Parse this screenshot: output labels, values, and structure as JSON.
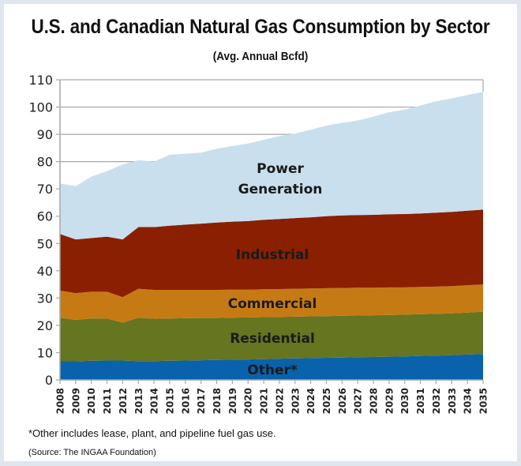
{
  "chart_data": {
    "type": "area",
    "stacked": true,
    "title": "U.S. and Canadian Natural Gas Consumption by Sector",
    "subtitle": "(Avg. Annual Bcfd)",
    "xlabel": "",
    "ylabel": "",
    "ylim": [
      0,
      110
    ],
    "yticks": [
      0,
      10,
      20,
      30,
      40,
      50,
      60,
      70,
      80,
      90,
      100,
      110
    ],
    "grid": true,
    "legend": "inline-labels",
    "x": [
      "2008",
      "2009",
      "2010",
      "2011",
      "2012",
      "2013",
      "2014",
      "2015",
      "2016",
      "2017",
      "2018",
      "2019",
      "2020",
      "2021",
      "2022",
      "2023",
      "2024",
      "2025",
      "2026",
      "2027",
      "2028",
      "2029",
      "2030",
      "2031",
      "2032",
      "2033",
      "2034",
      "2035"
    ],
    "series": [
      {
        "name": "Other*",
        "color": "#0a62ad",
        "values": [
          6.8,
          6.8,
          7.0,
          7.1,
          7.1,
          6.9,
          6.9,
          7.0,
          7.1,
          7.2,
          7.3,
          7.4,
          7.5,
          7.6,
          7.8,
          7.9,
          8.0,
          8.1,
          8.2,
          8.3,
          8.4,
          8.5,
          8.6,
          8.8,
          8.9,
          9.1,
          9.3,
          9.5
        ]
      },
      {
        "name": "Residential",
        "color": "#657520",
        "values": [
          16.0,
          15.2,
          15.5,
          15.4,
          13.9,
          15.9,
          15.5,
          15.5,
          15.5,
          15.5,
          15.4,
          15.4,
          15.4,
          15.4,
          15.3,
          15.3,
          15.3,
          15.3,
          15.3,
          15.3,
          15.3,
          15.3,
          15.3,
          15.3,
          15.3,
          15.3,
          15.4,
          15.5
        ]
      },
      {
        "name": "Commercial",
        "color": "#c67a14",
        "values": [
          9.9,
          9.8,
          9.8,
          9.8,
          9.3,
          10.6,
          10.6,
          10.5,
          10.4,
          10.3,
          10.3,
          10.3,
          10.2,
          10.2,
          10.2,
          10.2,
          10.2,
          10.2,
          10.2,
          10.2,
          10.1,
          10.1,
          10.0,
          10.0,
          10.0,
          10.0,
          10.0,
          10.0
        ]
      },
      {
        "name": "Industrial",
        "color": "#8b1f02",
        "values": [
          20.8,
          19.7,
          19.7,
          20.2,
          21.2,
          22.6,
          23.0,
          23.5,
          23.9,
          24.3,
          24.7,
          24.9,
          25.1,
          25.5,
          25.7,
          25.9,
          26.1,
          26.4,
          26.6,
          26.6,
          26.7,
          26.8,
          26.9,
          26.9,
          27.1,
          27.2,
          27.3,
          27.4
        ]
      },
      {
        "name": "Power Generation",
        "color": "#c9dfed",
        "values": [
          18.5,
          19.5,
          22.5,
          24.0,
          27.5,
          24.5,
          24.0,
          26.0,
          26.0,
          26.0,
          27.0,
          27.7,
          28.4,
          29.3,
          30.4,
          31.0,
          32.1,
          33.2,
          33.9,
          34.7,
          36.0,
          37.4,
          38.3,
          39.6,
          40.8,
          41.6,
          42.4,
          43.2
        ]
      }
    ],
    "annotations": [
      {
        "text": "Power",
        "series": "Power Generation"
      },
      {
        "text": "Generation",
        "series": "Power Generation"
      },
      {
        "text": "Industrial",
        "series": "Industrial"
      },
      {
        "text": "Commercial",
        "series": "Commercial"
      },
      {
        "text": "Residential",
        "series": "Residential"
      },
      {
        "text": "Other*",
        "series": "Other*"
      }
    ]
  },
  "footnote": "*Other includes lease, plant, and pipeline fuel gas use.",
  "source": "(Source: The INGAA Foundation)"
}
